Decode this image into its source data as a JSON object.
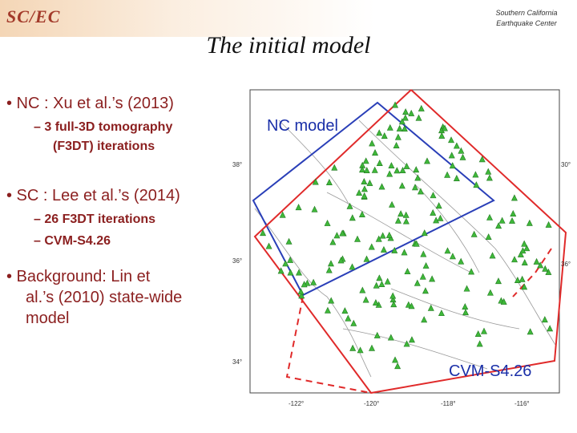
{
  "header": {
    "logo": "SC/EC",
    "org_line1": "Southern California",
    "org_line2": "Earthquake Center"
  },
  "slide": {
    "title": "The initial model",
    "bullets": {
      "nc": "• NC : Xu et al.’s (2013)",
      "nc_sub1_a": "– 3 full-3D tomography",
      "nc_sub1_b": "(F3DT) iterations",
      "sc": "• SC : Lee et al.’s (2014)",
      "sc_sub1": "– 26 F3DT iterations",
      "sc_sub2": "– CVM-S4.26",
      "bg_a": "• Background: Lin et",
      "bg_b": "al.’s (2010) state-wide",
      "bg_c": "model"
    }
  },
  "map": {
    "label_nc": "NC model",
    "label_cvm": "CVM-S4.26",
    "lat_labels": [
      "38°",
      "36°",
      "34°"
    ],
    "lat_labels_right": [
      "30°",
      "36°"
    ],
    "lon_labels": [
      "-122°",
      "-120°",
      "-118°",
      "-116°"
    ],
    "colors": {
      "nc_box": "#2a3fb8",
      "sc_box": "#e02a2a",
      "stations": "#3fb83a"
    }
  }
}
